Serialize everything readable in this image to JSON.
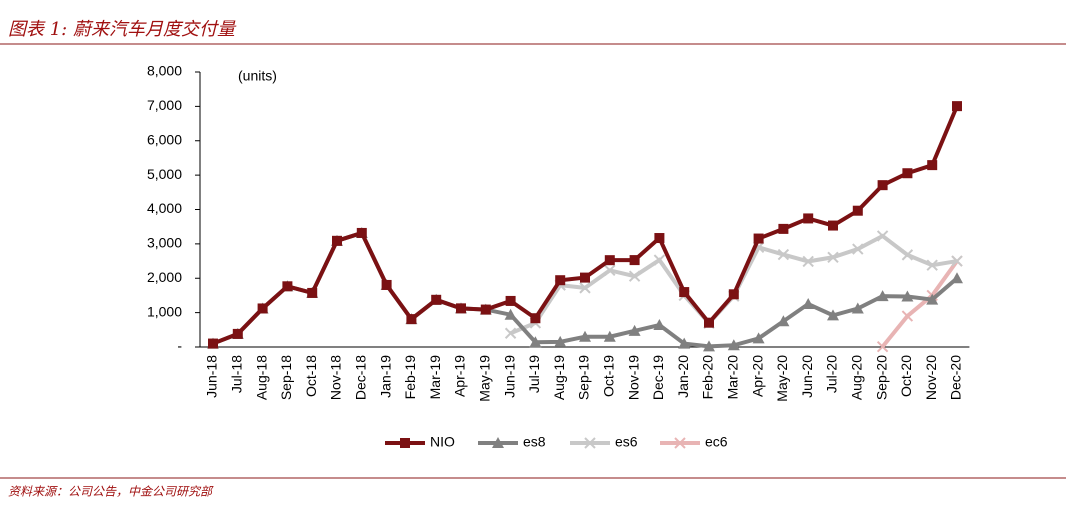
{
  "chart_data": {
    "type": "line",
    "title": "图表 1: 蔚来汽车月度交付量",
    "annotation": "(units)",
    "source": "资料来源：公司公告，中金公司研究部",
    "categories": [
      "Jun-18",
      "Jul-18",
      "Aug-18",
      "Sep-18",
      "Oct-18",
      "Nov-18",
      "Dec-18",
      "Jan-19",
      "Feb-19",
      "Mar-19",
      "Apr-19",
      "May-19",
      "Jun-19",
      "Jul-19",
      "Aug-19",
      "Sep-19",
      "Oct-19",
      "Nov-19",
      "Dec-19",
      "Jan-20",
      "Feb-20",
      "Mar-20",
      "Apr-20",
      "May-20",
      "Jun-20",
      "Jul-20",
      "Aug-20",
      "Sep-20",
      "Oct-20",
      "Nov-20",
      "Dec-20"
    ],
    "series": [
      {
        "name": "NIO",
        "color": "#7b1113",
        "marker": "square",
        "values": [
          100,
          381,
          1121,
          1766,
          1573,
          3089,
          3318,
          1805,
          811,
          1373,
          1124,
          1089,
          1340,
          837,
          1943,
          2019,
          2526,
          2528,
          3170,
          1598,
          707,
          1533,
          3155,
          3436,
          3740,
          3533,
          3965,
          4708,
          5055,
          5291,
          7007
        ]
      },
      {
        "name": "es8",
        "color": "#808080",
        "marker": "triangle",
        "values": [
          100,
          381,
          1121,
          1766,
          1573,
          3089,
          3318,
          1805,
          811,
          1373,
          1124,
          1089,
          940,
          140,
          150,
          300,
          300,
          470,
          640,
          100,
          20,
          50,
          250,
          750,
          1250,
          920,
          1120,
          1480,
          1470,
          1380,
          2000
        ]
      },
      {
        "name": "es6",
        "color": "#c8c8c8",
        "marker": "x",
        "values": [
          null,
          null,
          null,
          null,
          null,
          null,
          null,
          null,
          null,
          null,
          null,
          null,
          400,
          700,
          1800,
          1720,
          2230,
          2060,
          2530,
          1500,
          690,
          1480,
          2900,
          2690,
          2490,
          2610,
          2850,
          3230,
          2680,
          2380,
          2500
        ]
      },
      {
        "name": "ec6",
        "color": "#e8b4b4",
        "marker": "x",
        "values": [
          null,
          null,
          null,
          null,
          null,
          null,
          null,
          null,
          null,
          null,
          null,
          null,
          null,
          null,
          null,
          null,
          null,
          null,
          null,
          null,
          null,
          null,
          null,
          null,
          null,
          null,
          null,
          10,
          900,
          1500,
          2500
        ]
      }
    ],
    "ylim": [
      0,
      8000
    ],
    "yticks": [
      {
        "value": 0,
        "label": "-"
      },
      {
        "value": 1000,
        "label": "1,000"
      },
      {
        "value": 2000,
        "label": "2,000"
      },
      {
        "value": 3000,
        "label": "3,000"
      },
      {
        "value": 4000,
        "label": "4,000"
      },
      {
        "value": 5000,
        "label": "5,000"
      },
      {
        "value": 6000,
        "label": "6,000"
      },
      {
        "value": 7000,
        "label": "7,000"
      },
      {
        "value": 8000,
        "label": "8,000"
      }
    ]
  }
}
